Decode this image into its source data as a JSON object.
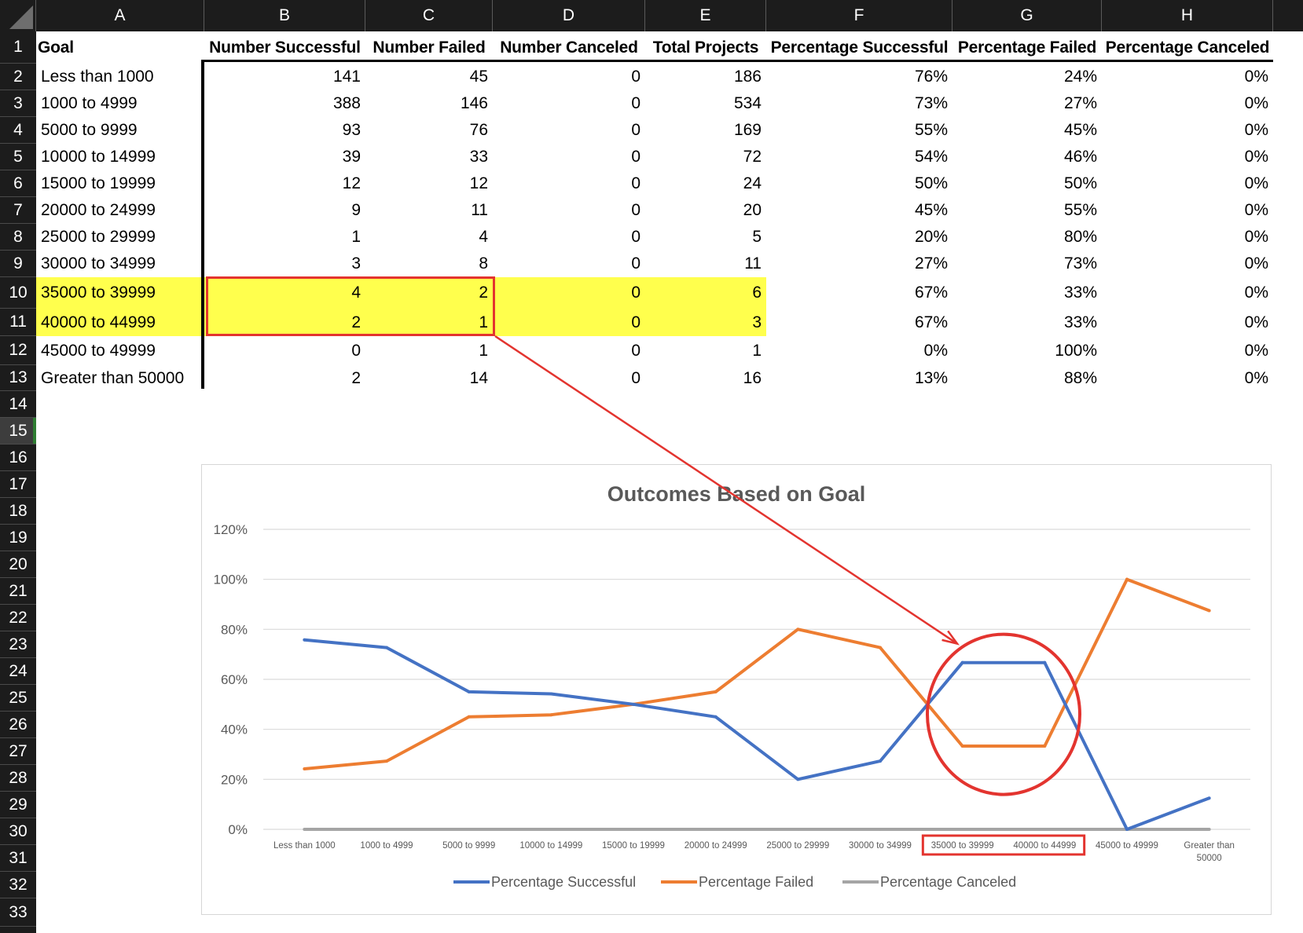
{
  "columns": [
    "A",
    "B",
    "C",
    "D",
    "E",
    "F",
    "G",
    "H"
  ],
  "row_numbers": [
    "1",
    "2",
    "3",
    "4",
    "5",
    "6",
    "7",
    "8",
    "9",
    "10",
    "11",
    "12",
    "13",
    "14",
    "15",
    "16",
    "17",
    "18",
    "19",
    "20",
    "21",
    "22",
    "23",
    "24",
    "25",
    "26",
    "27",
    "28",
    "29",
    "30",
    "31",
    "32",
    "33"
  ],
  "selected_row": "15",
  "table": {
    "headers": [
      "Goal",
      "Number Successful",
      "Number Failed",
      "Number Canceled",
      "Total Projects",
      "Percentage Successful",
      "Percentage Failed",
      "Percentage Canceled"
    ],
    "rows": [
      [
        "Less than 1000",
        "141",
        "45",
        "0",
        "186",
        "76%",
        "24%",
        "0%"
      ],
      [
        "1000 to 4999",
        "388",
        "146",
        "0",
        "534",
        "73%",
        "27%",
        "0%"
      ],
      [
        "5000 to 9999",
        "93",
        "76",
        "0",
        "169",
        "55%",
        "45%",
        "0%"
      ],
      [
        "10000 to 14999",
        "39",
        "33",
        "0",
        "72",
        "54%",
        "46%",
        "0%"
      ],
      [
        "15000 to 19999",
        "12",
        "12",
        "0",
        "24",
        "50%",
        "50%",
        "0%"
      ],
      [
        "20000 to 24999",
        "9",
        "11",
        "0",
        "20",
        "45%",
        "55%",
        "0%"
      ],
      [
        "25000 to 29999",
        "1",
        "4",
        "0",
        "5",
        "20%",
        "80%",
        "0%"
      ],
      [
        "30000 to 34999",
        "3",
        "8",
        "0",
        "11",
        "27%",
        "73%",
        "0%"
      ],
      [
        "35000 to 39999",
        "4",
        "2",
        "0",
        "6",
        "67%",
        "33%",
        "0%"
      ],
      [
        "40000 to 44999",
        "2",
        "1",
        "0",
        "3",
        "67%",
        "33%",
        "0%"
      ],
      [
        "45000 to 49999",
        "0",
        "1",
        "0",
        "1",
        "0%",
        "100%",
        "0%"
      ],
      [
        "Greater than 50000",
        "2",
        "14",
        "0",
        "16",
        "13%",
        "88%",
        "0%"
      ]
    ],
    "highlight_color": "#ffff4d",
    "annotation_color": "#e3342f"
  },
  "chart_data": {
    "type": "line",
    "title": "Outcomes Based on Goal",
    "categories": [
      "Less than 1000",
      "1000 to 4999",
      "5000 to 9999",
      "10000 to 14999",
      "15000 to 19999",
      "20000 to 24999",
      "25000 to 29999",
      "30000 to 34999",
      "35000 to 39999",
      "40000 to 44999",
      "45000 to 49999",
      "Greater than 50000"
    ],
    "series": [
      {
        "name": "Percentage Successful",
        "color": "#4472c4",
        "values": [
          75.8,
          72.7,
          55.0,
          54.2,
          50.0,
          45.0,
          20.0,
          27.3,
          66.7,
          66.7,
          0.0,
          12.5
        ]
      },
      {
        "name": "Percentage Failed",
        "color": "#ed7d31",
        "values": [
          24.2,
          27.3,
          45.0,
          45.8,
          50.0,
          55.0,
          80.0,
          72.7,
          33.3,
          33.3,
          100.0,
          87.5
        ]
      },
      {
        "name": "Percentage Canceled",
        "color": "#a5a5a5",
        "values": [
          0,
          0,
          0,
          0,
          0,
          0,
          0,
          0,
          0,
          0,
          0,
          0
        ]
      }
    ],
    "yticks": [
      "0%",
      "20%",
      "40%",
      "60%",
      "80%",
      "100%",
      "120%"
    ],
    "ylim": [
      0,
      120
    ],
    "grid": true,
    "legend": "bottom"
  }
}
